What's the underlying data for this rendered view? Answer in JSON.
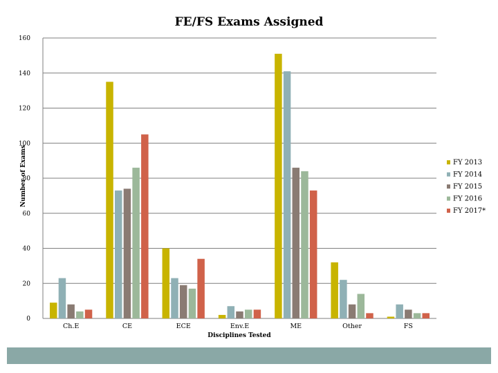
{
  "chart_data": {
    "type": "bar",
    "title": "FE/FS Exams Assigned",
    "xlabel": "Disciplines Tested",
    "ylabel": "Number of Exams",
    "ylim": [
      0,
      160
    ],
    "yticks": [
      0,
      20,
      40,
      60,
      80,
      100,
      120,
      140,
      160
    ],
    "grid": true,
    "legend_position": "right",
    "categories": [
      "Ch.E",
      "CE",
      "ECE",
      "Env.E",
      "ME",
      "Other",
      "FS"
    ],
    "series": [
      {
        "name": "FY 2013",
        "color": "#c8b400",
        "values": [
          9,
          135,
          40,
          2,
          151,
          32,
          1
        ]
      },
      {
        "name": "FY 2014",
        "color": "#8fb0b5",
        "values": [
          23,
          73,
          23,
          7,
          141,
          22,
          8
        ]
      },
      {
        "name": "FY 2015",
        "color": "#8a7b73",
        "values": [
          8,
          74,
          19,
          4,
          86,
          8,
          5
        ]
      },
      {
        "name": "FY 2016",
        "color": "#9cb89a",
        "values": [
          4,
          86,
          17,
          5,
          84,
          14,
          3
        ]
      },
      {
        "name": "FY 2017*",
        "color": "#d0624a",
        "values": [
          5,
          105,
          34,
          5,
          73,
          3,
          3
        ]
      }
    ]
  },
  "footer": {
    "color": "#8aa8a6"
  }
}
